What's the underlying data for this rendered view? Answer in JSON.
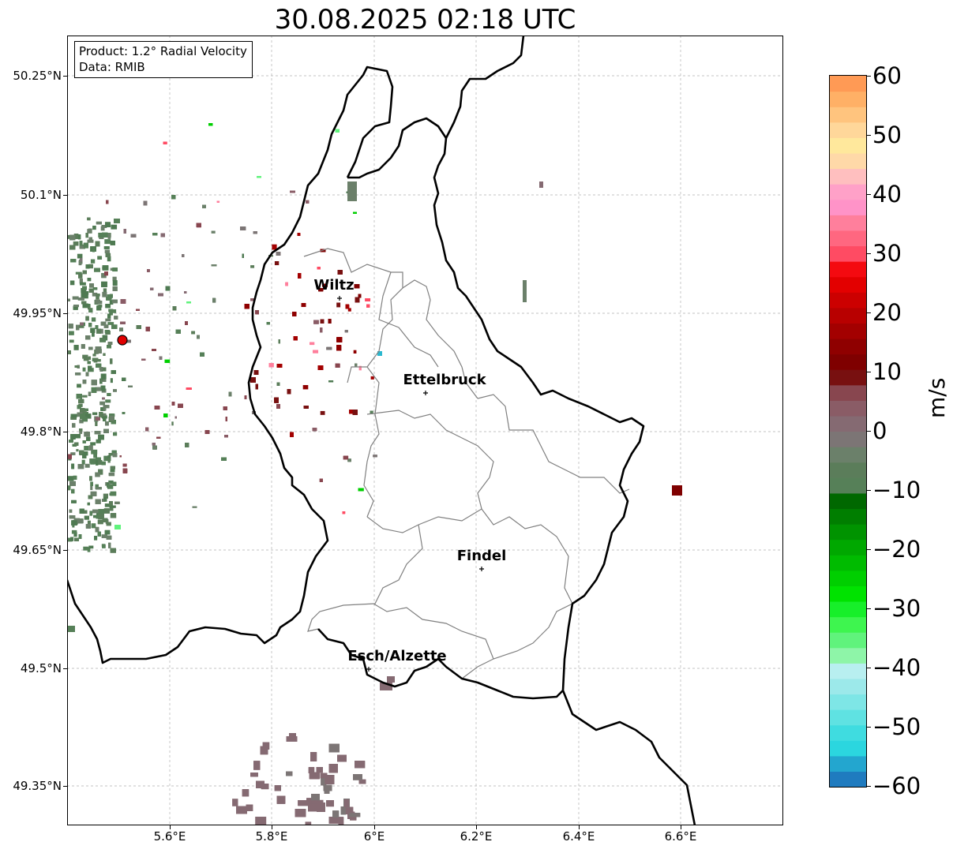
{
  "title": "30.08.2025 02:18 UTC",
  "info": {
    "product": "Product: 1.2° Radial Velocity",
    "source": "Data: RMIB"
  },
  "axes": {
    "lat_labels": [
      "50.25°N",
      "50.1°N",
      "49.95°N",
      "49.8°N",
      "49.65°N",
      "49.5°N",
      "49.35°N"
    ],
    "lon_labels": [
      "5.6°E",
      "5.8°E",
      "6°E",
      "6.2°E",
      "6.4°E",
      "6.6°E"
    ]
  },
  "cities": [
    {
      "name": "Wiltz"
    },
    {
      "name": "Ettelbruck"
    },
    {
      "name": "Findel"
    },
    {
      "name": "Esch/Alzette"
    }
  ],
  "colorbar": {
    "unit": "m/s",
    "tick_labels": [
      "60",
      "50",
      "40",
      "30",
      "20",
      "10",
      "0",
      "−10",
      "−20",
      "−30",
      "−40",
      "−50",
      "−60"
    ],
    "min": -60,
    "max": 60,
    "colors": [
      "#1f7bbf",
      "#23a6cf",
      "#2bd6df",
      "#3fdce0",
      "#5fe2e2",
      "#7ee6e6",
      "#9ce9ea",
      "#b8eff0",
      "#8ef5a8",
      "#60f37c",
      "#3ef54f",
      "#17ef2a",
      "#00e300",
      "#00cf00",
      "#00bb00",
      "#00a800",
      "#009300",
      "#007e00",
      "#006800",
      "#568058",
      "#5b7d5a",
      "#6b806a",
      "#7c7575",
      "#856a72",
      "#8a5c66",
      "#88464f",
      "#781010",
      "#7f0000",
      "#8f0000",
      "#a30000",
      "#b80000",
      "#cc0000",
      "#e30000",
      "#f40a10",
      "#ff4b63",
      "#ff6780",
      "#ff7f9c",
      "#ff93c8",
      "#ffa1c8",
      "#ffbfbf",
      "#ffd9a8",
      "#ffe89c",
      "#ffd79a",
      "#ffc47e",
      "#ffb066",
      "#ff9a55"
    ]
  },
  "colors": {
    "radar_site": "#e00000",
    "border": "#000000",
    "canton": "#808080",
    "grid": "#b0b0b0"
  }
}
